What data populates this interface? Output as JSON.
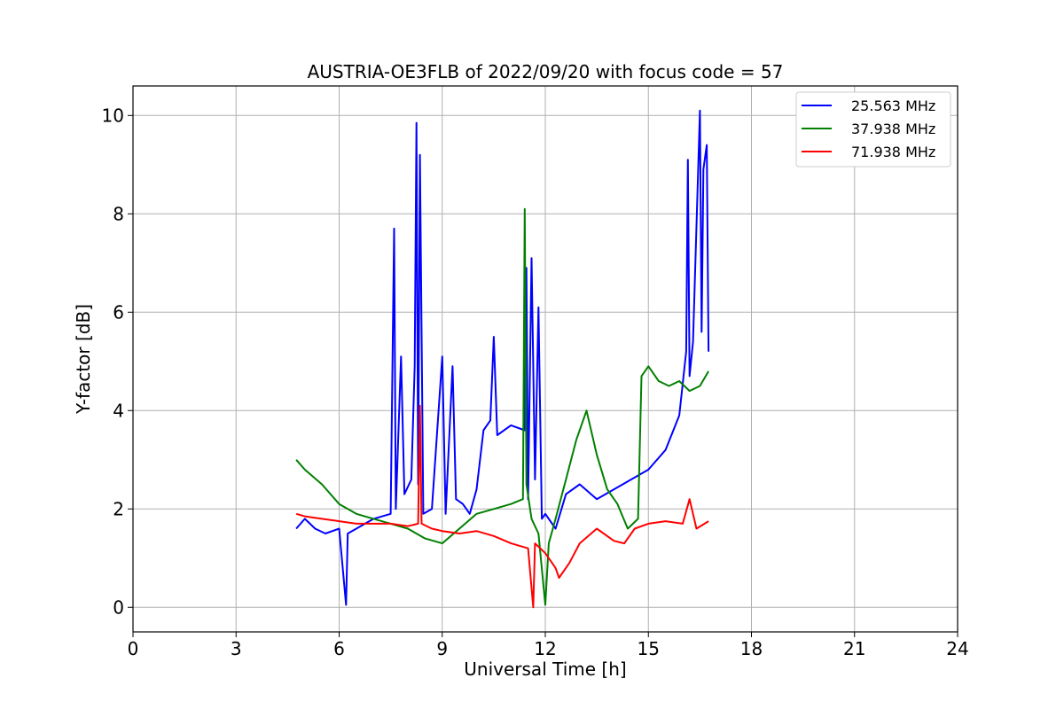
{
  "chart_data": {
    "type": "line",
    "title": "AUSTRIA-OE3FLB of 2022/09/20 with focus code = 57",
    "xlabel": "Universal Time [h]",
    "ylabel": "Y-factor [dB]",
    "xlim": [
      0,
      24
    ],
    "ylim": [
      -0.5,
      10.6
    ],
    "xticks": [
      0,
      3,
      6,
      9,
      12,
      15,
      18,
      21,
      24
    ],
    "yticks": [
      0,
      2,
      4,
      6,
      8,
      10
    ],
    "grid": true,
    "legend_position": "top-right",
    "series": [
      {
        "name": "25.563 MHz",
        "color": "#0000ff",
        "points": [
          [
            4.75,
            1.6
          ],
          [
            5.0,
            1.8
          ],
          [
            5.3,
            1.6
          ],
          [
            5.6,
            1.5
          ],
          [
            6.0,
            1.6
          ],
          [
            6.2,
            0.05
          ],
          [
            6.25,
            1.5
          ],
          [
            6.5,
            1.6
          ],
          [
            7.0,
            1.8
          ],
          [
            7.5,
            1.9
          ],
          [
            7.6,
            7.7
          ],
          [
            7.65,
            2.0
          ],
          [
            7.8,
            5.1
          ],
          [
            7.9,
            2.3
          ],
          [
            8.1,
            2.6
          ],
          [
            8.2,
            4.9
          ],
          [
            8.25,
            9.85
          ],
          [
            8.3,
            2.5
          ],
          [
            8.35,
            9.2
          ],
          [
            8.45,
            1.9
          ],
          [
            8.7,
            2.0
          ],
          [
            9.0,
            5.1
          ],
          [
            9.1,
            1.9
          ],
          [
            9.3,
            4.9
          ],
          [
            9.4,
            2.2
          ],
          [
            9.6,
            2.1
          ],
          [
            9.8,
            1.9
          ],
          [
            10.0,
            2.4
          ],
          [
            10.2,
            3.6
          ],
          [
            10.4,
            3.8
          ],
          [
            10.5,
            5.5
          ],
          [
            10.6,
            3.5
          ],
          [
            11.0,
            3.7
          ],
          [
            11.4,
            3.6
          ],
          [
            11.45,
            6.9
          ],
          [
            11.5,
            2.2
          ],
          [
            11.6,
            7.1
          ],
          [
            11.7,
            2.6
          ],
          [
            11.8,
            6.1
          ],
          [
            11.9,
            1.8
          ],
          [
            12.0,
            1.9
          ],
          [
            12.3,
            1.6
          ],
          [
            12.6,
            2.3
          ],
          [
            13.0,
            2.5
          ],
          [
            13.5,
            2.2
          ],
          [
            14.0,
            2.4
          ],
          [
            14.5,
            2.6
          ],
          [
            15.0,
            2.8
          ],
          [
            15.5,
            3.2
          ],
          [
            15.9,
            3.9
          ],
          [
            16.1,
            5.2
          ],
          [
            16.15,
            9.1
          ],
          [
            16.2,
            4.7
          ],
          [
            16.3,
            5.4
          ],
          [
            16.5,
            10.1
          ],
          [
            16.55,
            5.6
          ],
          [
            16.6,
            8.9
          ],
          [
            16.7,
            9.4
          ],
          [
            16.75,
            5.2
          ]
        ]
      },
      {
        "name": "37.938 MHz",
        "color": "#008000",
        "points": [
          [
            4.75,
            3.0
          ],
          [
            5.0,
            2.8
          ],
          [
            5.5,
            2.5
          ],
          [
            6.0,
            2.1
          ],
          [
            6.5,
            1.9
          ],
          [
            7.0,
            1.8
          ],
          [
            7.5,
            1.7
          ],
          [
            8.0,
            1.6
          ],
          [
            8.5,
            1.4
          ],
          [
            9.0,
            1.3
          ],
          [
            9.5,
            1.6
          ],
          [
            10.0,
            1.9
          ],
          [
            10.5,
            2.0
          ],
          [
            11.0,
            2.1
          ],
          [
            11.35,
            2.2
          ],
          [
            11.4,
            8.1
          ],
          [
            11.45,
            2.5
          ],
          [
            11.6,
            1.8
          ],
          [
            11.8,
            1.5
          ],
          [
            12.0,
            0.05
          ],
          [
            12.1,
            1.3
          ],
          [
            12.3,
            1.8
          ],
          [
            12.6,
            2.6
          ],
          [
            12.9,
            3.4
          ],
          [
            13.2,
            4.0
          ],
          [
            13.5,
            3.1
          ],
          [
            13.8,
            2.4
          ],
          [
            14.1,
            2.1
          ],
          [
            14.4,
            1.6
          ],
          [
            14.7,
            1.8
          ],
          [
            14.8,
            4.7
          ],
          [
            15.0,
            4.9
          ],
          [
            15.3,
            4.6
          ],
          [
            15.6,
            4.5
          ],
          [
            15.9,
            4.6
          ],
          [
            16.2,
            4.4
          ],
          [
            16.5,
            4.5
          ],
          [
            16.75,
            4.8
          ]
        ]
      },
      {
        "name": "71.938 MHz",
        "color": "#ff0000",
        "points": [
          [
            4.75,
            1.9
          ],
          [
            5.0,
            1.85
          ],
          [
            5.5,
            1.8
          ],
          [
            6.0,
            1.75
          ],
          [
            6.5,
            1.7
          ],
          [
            7.0,
            1.7
          ],
          [
            7.5,
            1.7
          ],
          [
            8.0,
            1.65
          ],
          [
            8.3,
            1.7
          ],
          [
            8.35,
            4.1
          ],
          [
            8.4,
            1.7
          ],
          [
            8.7,
            1.6
          ],
          [
            9.0,
            1.55
          ],
          [
            9.5,
            1.5
          ],
          [
            10.0,
            1.55
          ],
          [
            10.5,
            1.45
          ],
          [
            11.0,
            1.3
          ],
          [
            11.5,
            1.2
          ],
          [
            11.65,
            0.0
          ],
          [
            11.7,
            1.3
          ],
          [
            12.0,
            1.1
          ],
          [
            12.3,
            0.8
          ],
          [
            12.4,
            0.6
          ],
          [
            12.7,
            0.9
          ],
          [
            13.0,
            1.3
          ],
          [
            13.5,
            1.6
          ],
          [
            14.0,
            1.35
          ],
          [
            14.3,
            1.3
          ],
          [
            14.6,
            1.6
          ],
          [
            15.0,
            1.7
          ],
          [
            15.5,
            1.75
          ],
          [
            16.0,
            1.7
          ],
          [
            16.2,
            2.2
          ],
          [
            16.4,
            1.6
          ],
          [
            16.75,
            1.75
          ]
        ]
      }
    ]
  }
}
